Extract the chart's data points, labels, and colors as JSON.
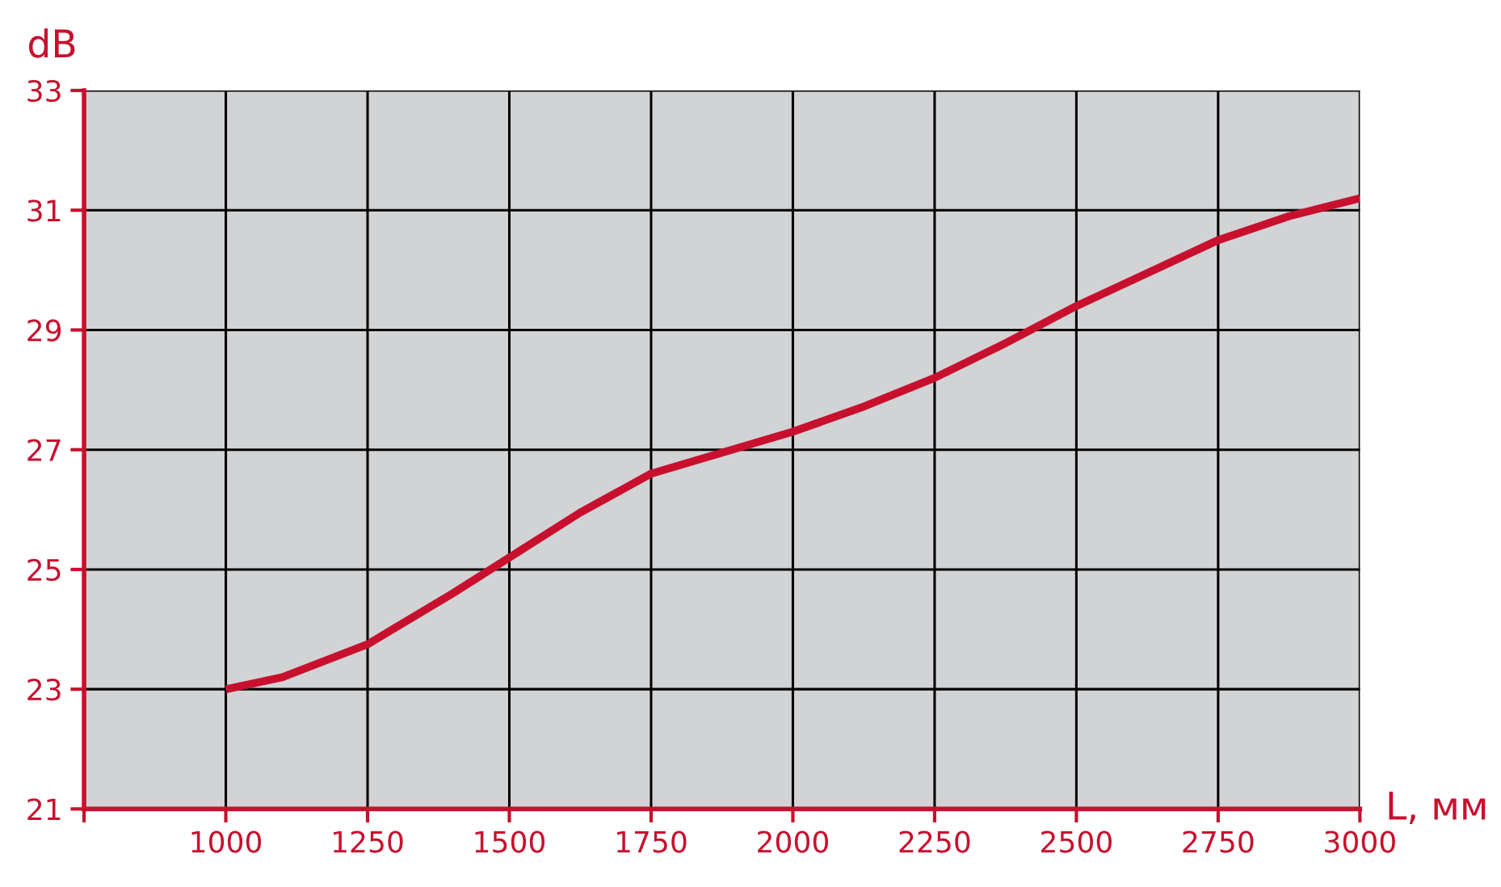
{
  "chart_data": {
    "type": "line",
    "xlabel": "L, мм",
    "ylabel": "dB",
    "series": [
      {
        "color": "#c8102e",
        "x": [
          1000,
          1100,
          1250,
          1400,
          1500,
          1625,
          1750,
          1875,
          2000,
          2125,
          2250,
          2375,
          2500,
          2625,
          2750,
          2875,
          3000
        ],
        "values": [
          23.0,
          23.2,
          23.75,
          24.6,
          25.2,
          25.95,
          26.6,
          26.95,
          27.3,
          27.72,
          28.2,
          28.78,
          29.4,
          29.95,
          30.5,
          30.9,
          31.2
        ]
      }
    ],
    "xlim": [
      750,
      3000
    ],
    "ylim": [
      21,
      33
    ],
    "xticks": [
      {
        "value": 750,
        "label": null
      },
      1000,
      1250,
      1500,
      1750,
      2000,
      2250,
      2500,
      2750,
      3000
    ],
    "yticks": [
      21,
      23,
      25,
      27,
      29,
      31,
      33
    ],
    "grid": true,
    "marker": "none",
    "line_style": "solid"
  }
}
